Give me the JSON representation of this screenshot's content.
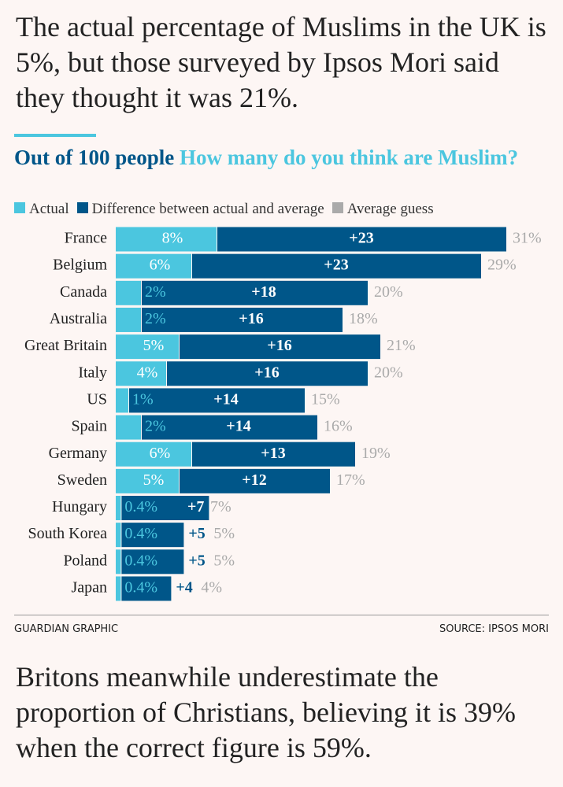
{
  "headline": "The actual percentage of Muslims in the UK is 5%, but those surveyed by Ipsos Mori said they thought it was 21%.",
  "chart_data": {
    "type": "stacked-bar-horizontal",
    "title": "Out of 100 people",
    "subtitle": "How many do you think are Muslim?",
    "categories": [
      "France",
      "Belgium",
      "Canada",
      "Australia",
      "Great Britain",
      "Italy",
      "US",
      "Spain",
      "Germany",
      "Sweden",
      "Hungary",
      "South Korea",
      "Poland",
      "Japan"
    ],
    "series": [
      {
        "name": "Actual",
        "color": "#4bc6df",
        "values": [
          8,
          6,
          2,
          2,
          5,
          4,
          1,
          2,
          6,
          5,
          0.4,
          0.4,
          0.4,
          0.4
        ],
        "value_labels": [
          "8%",
          "6%",
          "2%",
          "2%",
          "5%",
          "4%",
          "1%",
          "2%",
          "6%",
          "5%",
          "0.4%",
          "0.4%",
          "0.4%",
          "0.4%"
        ]
      },
      {
        "name": "Difference between actual and average",
        "color": "#005689",
        "values": [
          23,
          23,
          18,
          16,
          16,
          16,
          14,
          14,
          13,
          12,
          7,
          5,
          5,
          4
        ],
        "value_labels": [
          "+23",
          "+23",
          "+18",
          "+16",
          "+16",
          "+16",
          "+14",
          "+14",
          "+13",
          "+12",
          "+7",
          "+5",
          "+5",
          "+4"
        ]
      },
      {
        "name": "Average guess",
        "color": "#aaaaaa",
        "values": [
          31,
          29,
          20,
          18,
          21,
          20,
          15,
          16,
          19,
          17,
          7,
          5,
          5,
          4
        ],
        "value_labels": [
          "31%",
          "29%",
          "20%",
          "18%",
          "21%",
          "20%",
          "15%",
          "16%",
          "19%",
          "17%",
          "7%",
          "5%",
          "5%",
          "4%"
        ]
      }
    ]
  },
  "footer": {
    "credit": "GUARDIAN GRAPHIC",
    "source": "SOURCE: IPSOS MORI"
  },
  "body": "Britons meanwhile underestimate the proportion of Christians, believing it is 39% when the correct figure is 59%."
}
